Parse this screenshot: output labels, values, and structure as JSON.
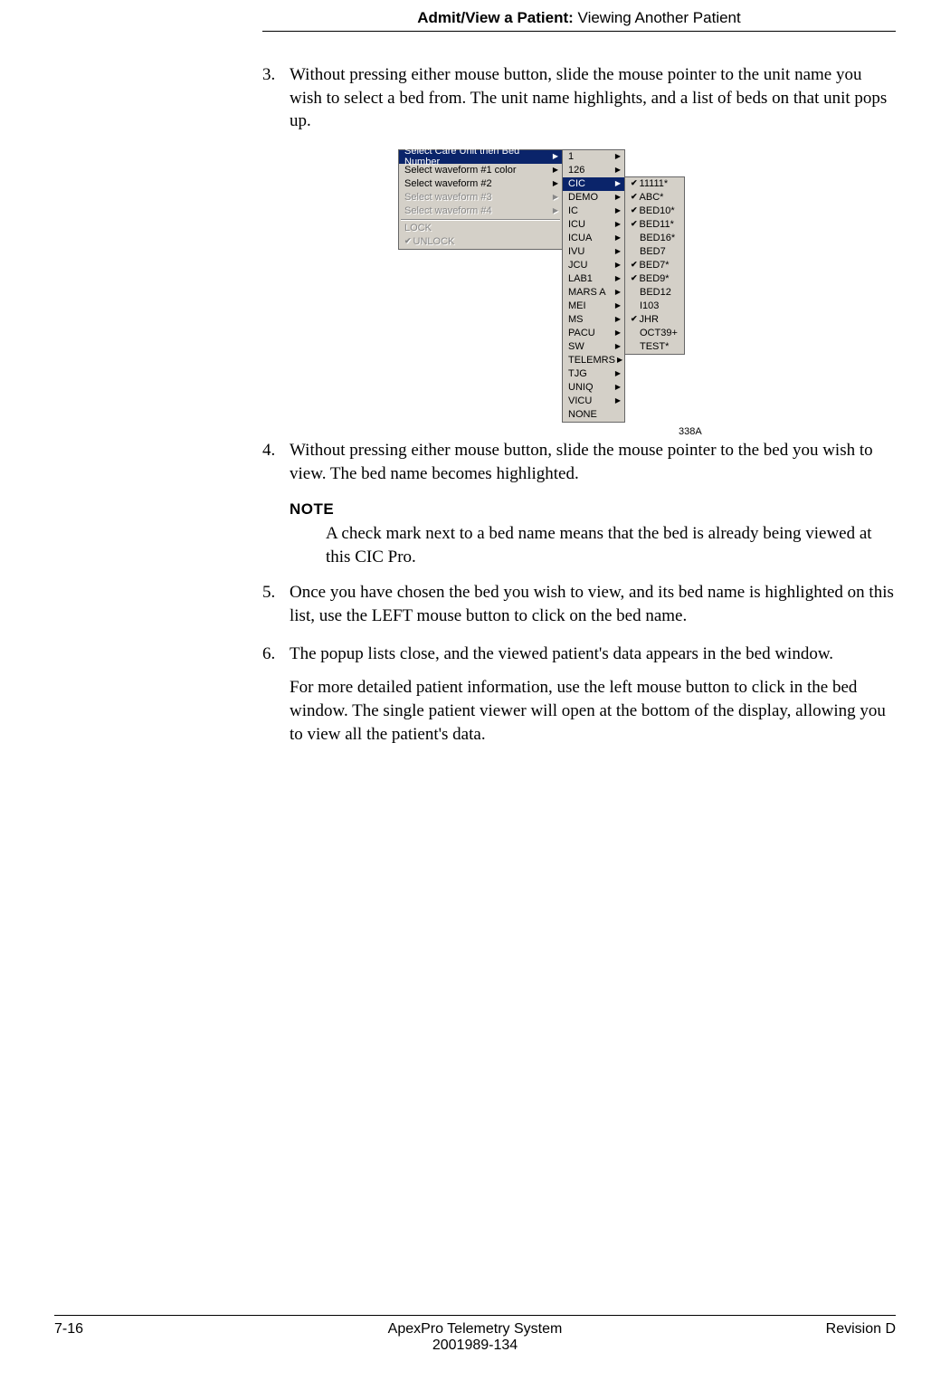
{
  "header": {
    "bold": "Admit/View a Patient:",
    "normal": " Viewing Another Patient"
  },
  "steps": {
    "s3": {
      "num": "3.",
      "text": "Without pressing either mouse button, slide the mouse pointer to the unit name you wish to select a bed from. The unit name highlights, and a list of beds on that unit pops up."
    },
    "s4": {
      "num": "4.",
      "text": "Without pressing either mouse button, slide the mouse pointer to the bed you wish to view. The bed name becomes highlighted."
    },
    "s5": {
      "num": "5.",
      "text": "Once you have chosen the bed you wish to view, and its bed name is highlighted on this list, use the LEFT mouse button to click on the bed name."
    },
    "s6": {
      "num": "6.",
      "text": "The popup lists close, and the viewed patient's data appears in the bed window."
    }
  },
  "note": {
    "label": "NOTE",
    "body": "A check mark next to a bed name means that the bed is already being viewed at this CIC Pro."
  },
  "extra": "For more detailed patient information, use the left mouse button to click in the bed window. The single patient viewer will open at the bottom of the display, allowing you to view all the patient's data.",
  "figure": {
    "label": "338A",
    "main_menu": {
      "items": [
        {
          "label": "Select Care Unit then Bed Number",
          "selected": true,
          "arrow": true
        },
        {
          "label": "Select waveform #1 color",
          "selected": false,
          "arrow": true
        },
        {
          "label": "Select waveform #2",
          "selected": false,
          "arrow": true
        },
        {
          "label": "Select waveform #3",
          "disabled": true,
          "arrow": true
        },
        {
          "label": "Select waveform #4",
          "disabled": true,
          "arrow": true
        }
      ],
      "lock_items": [
        {
          "label": "LOCK",
          "disabled": true
        },
        {
          "label": "UNLOCK",
          "disabled": true,
          "checked": true
        }
      ]
    },
    "unit_menu": [
      {
        "label": "1"
      },
      {
        "label": "126"
      },
      {
        "label": "CIC",
        "selected": true
      },
      {
        "label": "DEMO"
      },
      {
        "label": "IC"
      },
      {
        "label": "ICU"
      },
      {
        "label": "ICUA"
      },
      {
        "label": "IVU"
      },
      {
        "label": "JCU"
      },
      {
        "label": "LAB1"
      },
      {
        "label": "MARS A"
      },
      {
        "label": "MEI"
      },
      {
        "label": "MS"
      },
      {
        "label": "PACU"
      },
      {
        "label": "SW"
      },
      {
        "label": "TELEMRS"
      },
      {
        "label": "TJG"
      },
      {
        "label": "UNIQ"
      },
      {
        "label": "VICU"
      },
      {
        "label": "NONE",
        "noarrow": true
      }
    ],
    "bed_menu": [
      {
        "label": "11111*",
        "checked": true
      },
      {
        "label": "ABC*",
        "checked": true
      },
      {
        "label": "BED10*",
        "checked": true
      },
      {
        "label": "BED11*",
        "checked": true
      },
      {
        "label": "BED16*"
      },
      {
        "label": "BED7"
      },
      {
        "label": "BED7*",
        "checked": true
      },
      {
        "label": "BED9*",
        "checked": true
      },
      {
        "label": "BED12"
      },
      {
        "label": "I103"
      },
      {
        "label": "JHR",
        "checked": true
      },
      {
        "label": "OCT39+"
      },
      {
        "label": "TEST*"
      }
    ]
  },
  "footer": {
    "left": "7-16",
    "center1": "ApexPro Telemetry System",
    "center2": "2001989-134",
    "right": "Revision D"
  }
}
